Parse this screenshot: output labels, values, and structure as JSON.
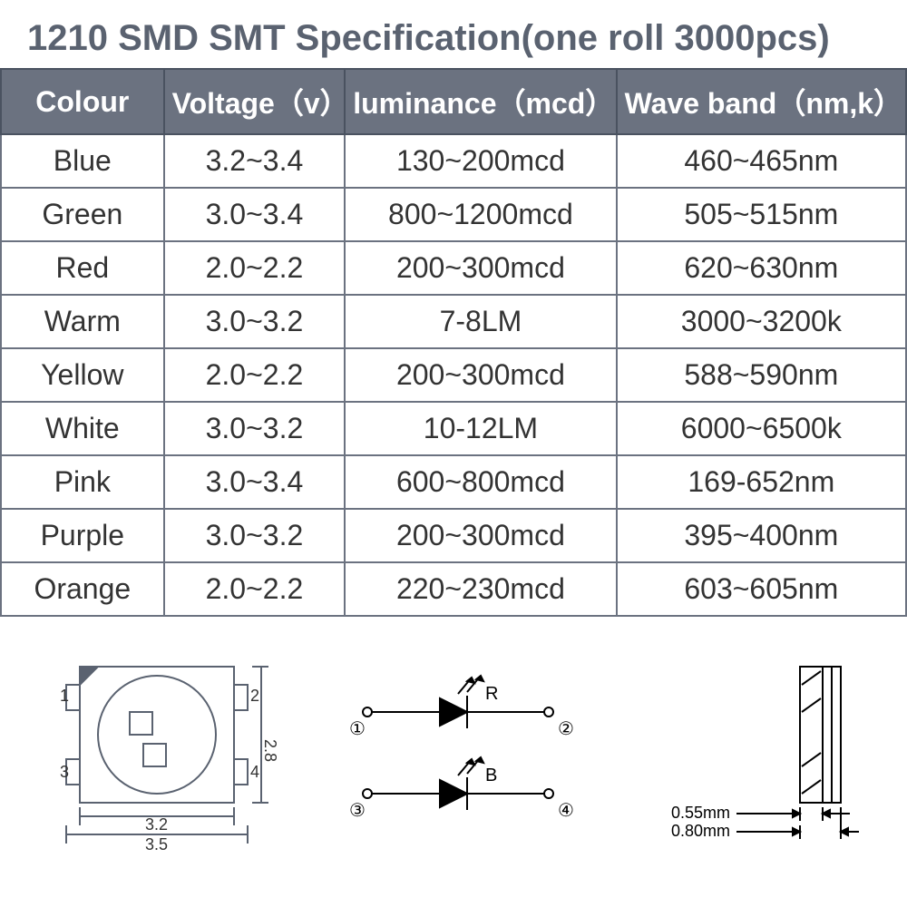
{
  "title": "1210 SMD SMT Specification(one roll 3000pcs)",
  "table": {
    "headers": {
      "colour": "Colour",
      "voltage": "Voltage（v）",
      "luminance": "luminance（mcd）",
      "waveband": "Wave band（nm,k）"
    },
    "rows": [
      {
        "colour": "Blue",
        "voltage": "3.2~3.4",
        "luminance": "130~200mcd",
        "waveband": "460~465nm"
      },
      {
        "colour": "Green",
        "voltage": "3.0~3.4",
        "luminance": "800~1200mcd",
        "waveband": "505~515nm"
      },
      {
        "colour": "Red",
        "voltage": "2.0~2.2",
        "luminance": "200~300mcd",
        "waveband": "620~630nm"
      },
      {
        "colour": "Warm",
        "voltage": "3.0~3.2",
        "luminance": "7-8LM",
        "waveband": "3000~3200k"
      },
      {
        "colour": "Yellow",
        "voltage": "2.0~2.2",
        "luminance": "200~300mcd",
        "waveband": "588~590nm"
      },
      {
        "colour": "White",
        "voltage": "3.0~3.2",
        "luminance": "10-12LM",
        "waveband": "6000~6500k"
      },
      {
        "colour": "Pink",
        "voltage": "3.0~3.4",
        "luminance": "600~800mcd",
        "waveband": "169-652nm"
      },
      {
        "colour": "Purple",
        "voltage": "3.0~3.2",
        "luminance": "200~300mcd",
        "waveband": "395~400nm"
      },
      {
        "colour": "Orange",
        "voltage": "2.0~2.2",
        "luminance": "220~230mcd",
        "waveband": "603~605nm"
      }
    ],
    "header_bg": "#6b7280",
    "header_fg": "#ffffff",
    "border_color": "#6b7280",
    "cell_fg": "#333333",
    "fontsize_header": 32,
    "fontsize_cell": 32
  },
  "diagrams": {
    "package_top": {
      "pins": {
        "p1": "1",
        "p2": "2",
        "p3": "3",
        "p4": "4"
      },
      "dim_width_inner": "3.2",
      "dim_width_outer": "3.5",
      "dim_height_inner": "2.8",
      "dim_height_outer": "2.8",
      "stroke": "#5a6270",
      "stroke_width": 2
    },
    "schematic": {
      "led1": {
        "label": "R",
        "pin_a": "①",
        "pin_b": "②"
      },
      "led2": {
        "label": "B",
        "pin_a": "③",
        "pin_b": "④"
      },
      "stroke": "#000000",
      "fontsize": 20
    },
    "side_view": {
      "dim_inner": "0.55mm",
      "dim_outer": "0.80mm",
      "stroke": "#000000",
      "fontsize": 18
    }
  },
  "colors": {
    "title": "#5a6270",
    "page_bg": "#ffffff"
  }
}
